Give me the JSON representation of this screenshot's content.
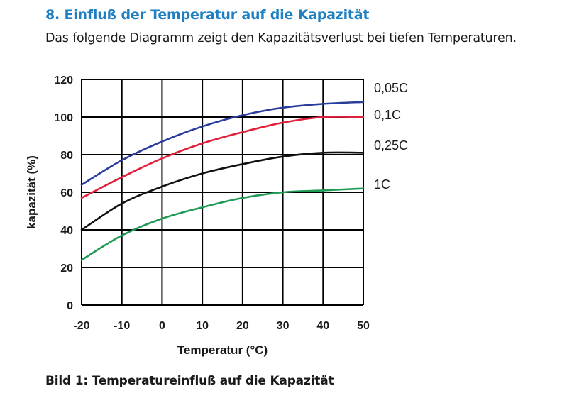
{
  "page": {
    "heading": "8. Einfluß der Temperatur auf die Kapazität",
    "subtitle": "Das folgende Diagramm zeigt den Kapazitätsverlust bei tiefen Temperaturen.",
    "caption": "Bild 1: Temperatureinfluß auf die Kapazität",
    "heading_color": "#1e7fc2"
  },
  "chart_data": {
    "type": "line",
    "title": "",
    "xlabel": "Temperatur (°C)",
    "ylabel": "kapazität (%)",
    "xlim": [
      -20,
      50
    ],
    "ylim": [
      0,
      120
    ],
    "x_ticks": [
      -20,
      -10,
      0,
      10,
      20,
      30,
      40,
      50
    ],
    "y_ticks": [
      0,
      20,
      40,
      60,
      80,
      100,
      120
    ],
    "grid": true,
    "legend": "right, labels next to curve ends",
    "series": [
      {
        "name": "0,05C",
        "color": "#2b3d9a",
        "x": [
          -20,
          -10,
          0,
          10,
          20,
          30,
          40,
          50
        ],
        "y": [
          64,
          77,
          87,
          95,
          101,
          105,
          107,
          108
        ]
      },
      {
        "name": "0,1C",
        "color": "#e0203a",
        "x": [
          -20,
          -10,
          0,
          10,
          20,
          30,
          40,
          50
        ],
        "y": [
          57,
          68,
          78,
          86,
          92,
          97,
          100,
          100
        ]
      },
      {
        "name": "0,25C",
        "color": "#111111",
        "x": [
          -20,
          -10,
          0,
          10,
          20,
          30,
          40,
          50
        ],
        "y": [
          40,
          54,
          63,
          70,
          75,
          79,
          81,
          81
        ]
      },
      {
        "name": "1C",
        "color": "#1f9a55",
        "x": [
          -20,
          -10,
          0,
          10,
          20,
          30,
          40,
          50
        ],
        "y": [
          24,
          37,
          46,
          52,
          57,
          60,
          61,
          62
        ]
      }
    ]
  }
}
